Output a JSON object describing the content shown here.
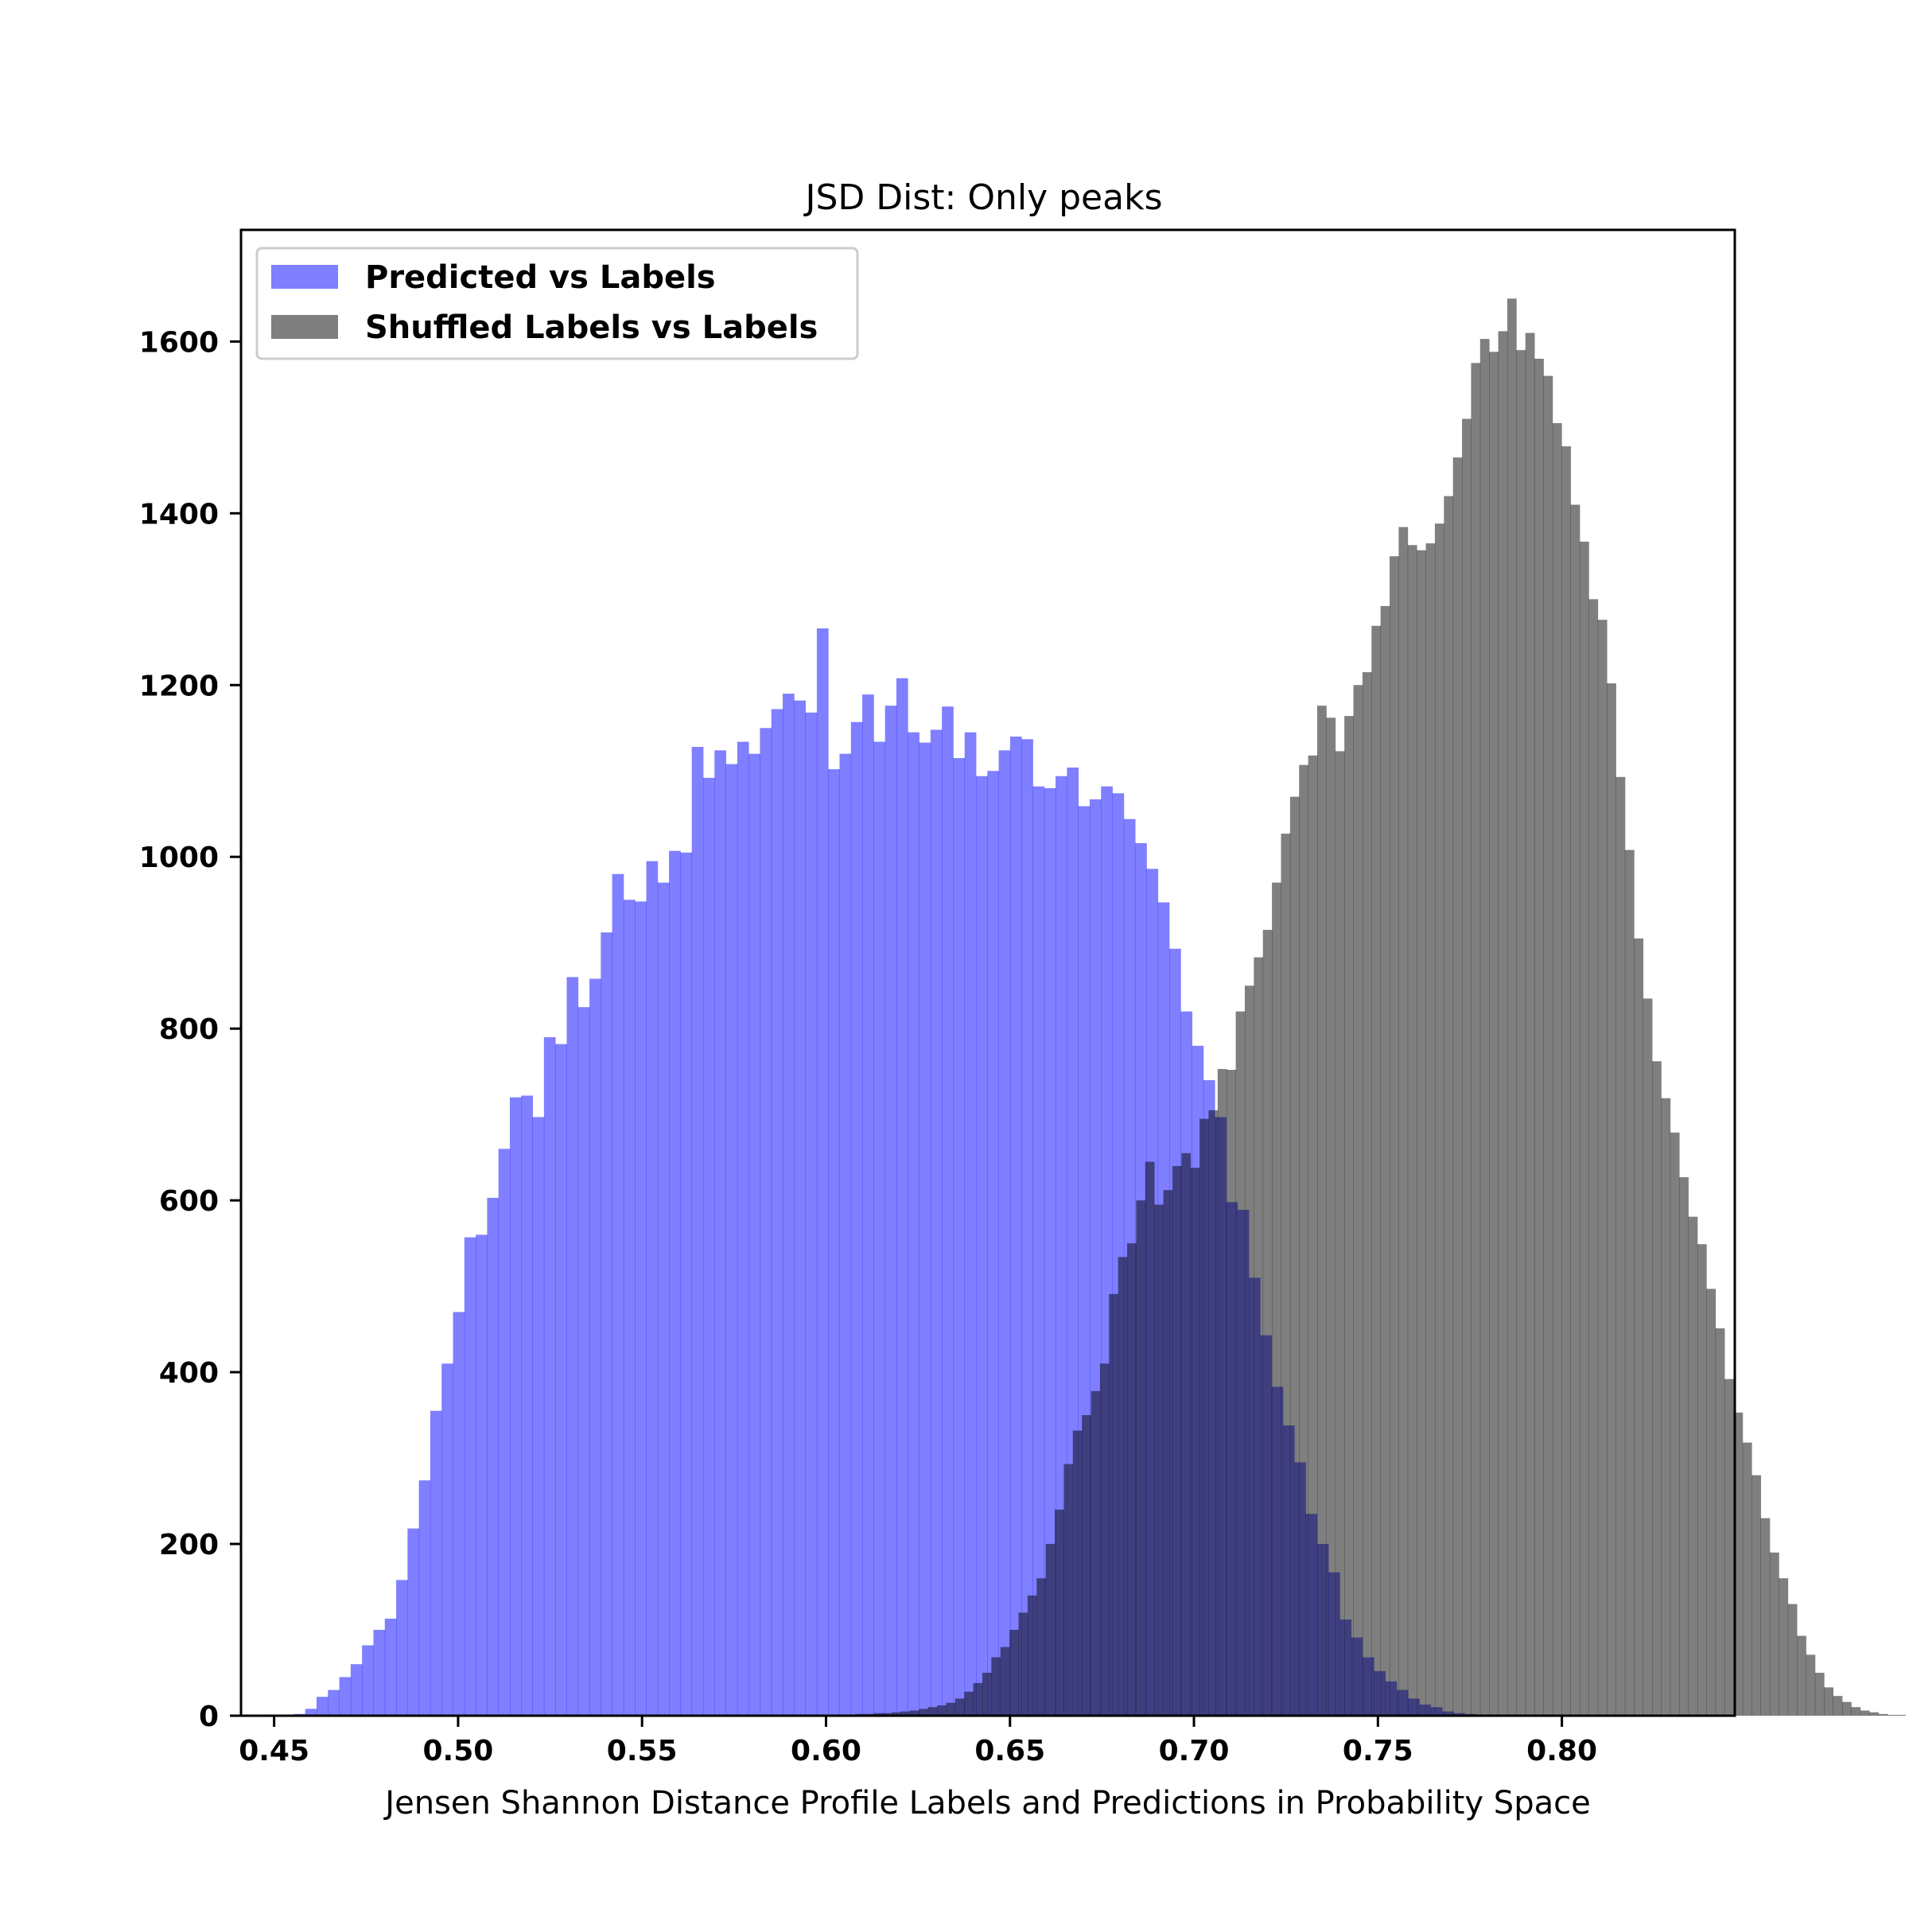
{
  "chart_data": {
    "type": "bar",
    "title": "JSD Dist: Only peaks",
    "xlabel": "Jensen Shannon Distance Profile Labels and Predictions in Probability Space",
    "ylabel": "",
    "xlim": [
      0.441,
      0.847
    ],
    "ylim": [
      0,
      1730
    ],
    "x_ticks": [
      0.45,
      0.5,
      0.55,
      0.6,
      0.65,
      0.7,
      0.75,
      0.8
    ],
    "x_tick_labels": [
      "0.45",
      "0.50",
      "0.55",
      "0.60",
      "0.65",
      "0.70",
      "0.75",
      "0.80"
    ],
    "y_ticks": [
      0,
      200,
      400,
      600,
      800,
      1000,
      1200,
      1400,
      1600
    ],
    "y_tick_labels": [
      "0",
      "200",
      "400",
      "600",
      "800",
      "1000",
      "1200",
      "1400",
      "1600"
    ],
    "grid": false,
    "legend_position": "top-left",
    "series": [
      {
        "name": "Predicted vs Labels",
        "color": "#0000ff",
        "opacity": 0.5,
        "x_start": 0.443,
        "bin_width": 0.00309,
        "values": [
          1,
          1,
          1,
          1,
          2,
          8,
          22,
          30,
          45,
          60,
          82,
          100,
          113,
          158,
          218,
          274,
          355,
          410,
          470,
          557,
          560,
          603,
          660,
          720,
          722,
          697,
          790,
          782,
          860,
          825,
          858,
          912,
          980,
          950,
          948,
          995,
          970,
          1007,
          1005,
          1128,
          1092,
          1124,
          1108,
          1134,
          1120,
          1150,
          1172,
          1190,
          1182,
          1168,
          1266,
          1102,
          1120,
          1157,
          1189,
          1134,
          1176,
          1208,
          1145,
          1133,
          1148,
          1175,
          1115,
          1145,
          1094,
          1100,
          1124,
          1140,
          1137,
          1082,
          1080,
          1094,
          1104,
          1059,
          1067,
          1082,
          1074,
          1044,
          1016,
          986,
          947,
          893,
          820,
          780,
          740,
          697,
          598,
          589,
          510,
          443,
          383,
          338,
          295,
          235,
          200,
          167,
          112,
          91,
          68,
          52,
          40,
          30,
          20,
          13,
          10,
          5,
          3,
          2,
          1
        ]
      },
      {
        "name": "Shuffled Labels vs Labels",
        "color": "#000000",
        "opacity": 0.5,
        "x_start": 0.5982,
        "bin_width": 0.00246,
        "values": [
          1,
          1,
          1,
          1,
          2,
          2,
          3,
          3,
          4,
          5,
          6,
          8,
          10,
          12,
          15,
          20,
          28,
          38,
          50,
          68,
          80,
          100,
          120,
          140,
          160,
          200,
          240,
          293,
          332,
          350,
          378,
          410,
          491,
          534,
          550,
          600,
          645,
          595,
          612,
          640,
          655,
          638,
          695,
          705,
          753,
          752,
          820,
          850,
          883,
          915,
          970,
          1027,
          1070,
          1107,
          1118,
          1176,
          1162,
          1123,
          1164,
          1200,
          1215,
          1269,
          1292,
          1350,
          1384,
          1363,
          1357,
          1365,
          1388,
          1420,
          1465,
          1510,
          1575,
          1603,
          1588,
          1612,
          1650,
          1590,
          1610,
          1580,
          1560,
          1505,
          1478,
          1410,
          1367,
          1300,
          1276,
          1202,
          1093,
          1008,
          905,
          835,
          762,
          719,
          679,
          627,
          581,
          549,
          497,
          451,
          392,
          353,
          318,
          280,
          230,
          190,
          160,
          130,
          93,
          71,
          50,
          33,
          23,
          16,
          10,
          6,
          4,
          2,
          1,
          1
        ]
      }
    ]
  }
}
